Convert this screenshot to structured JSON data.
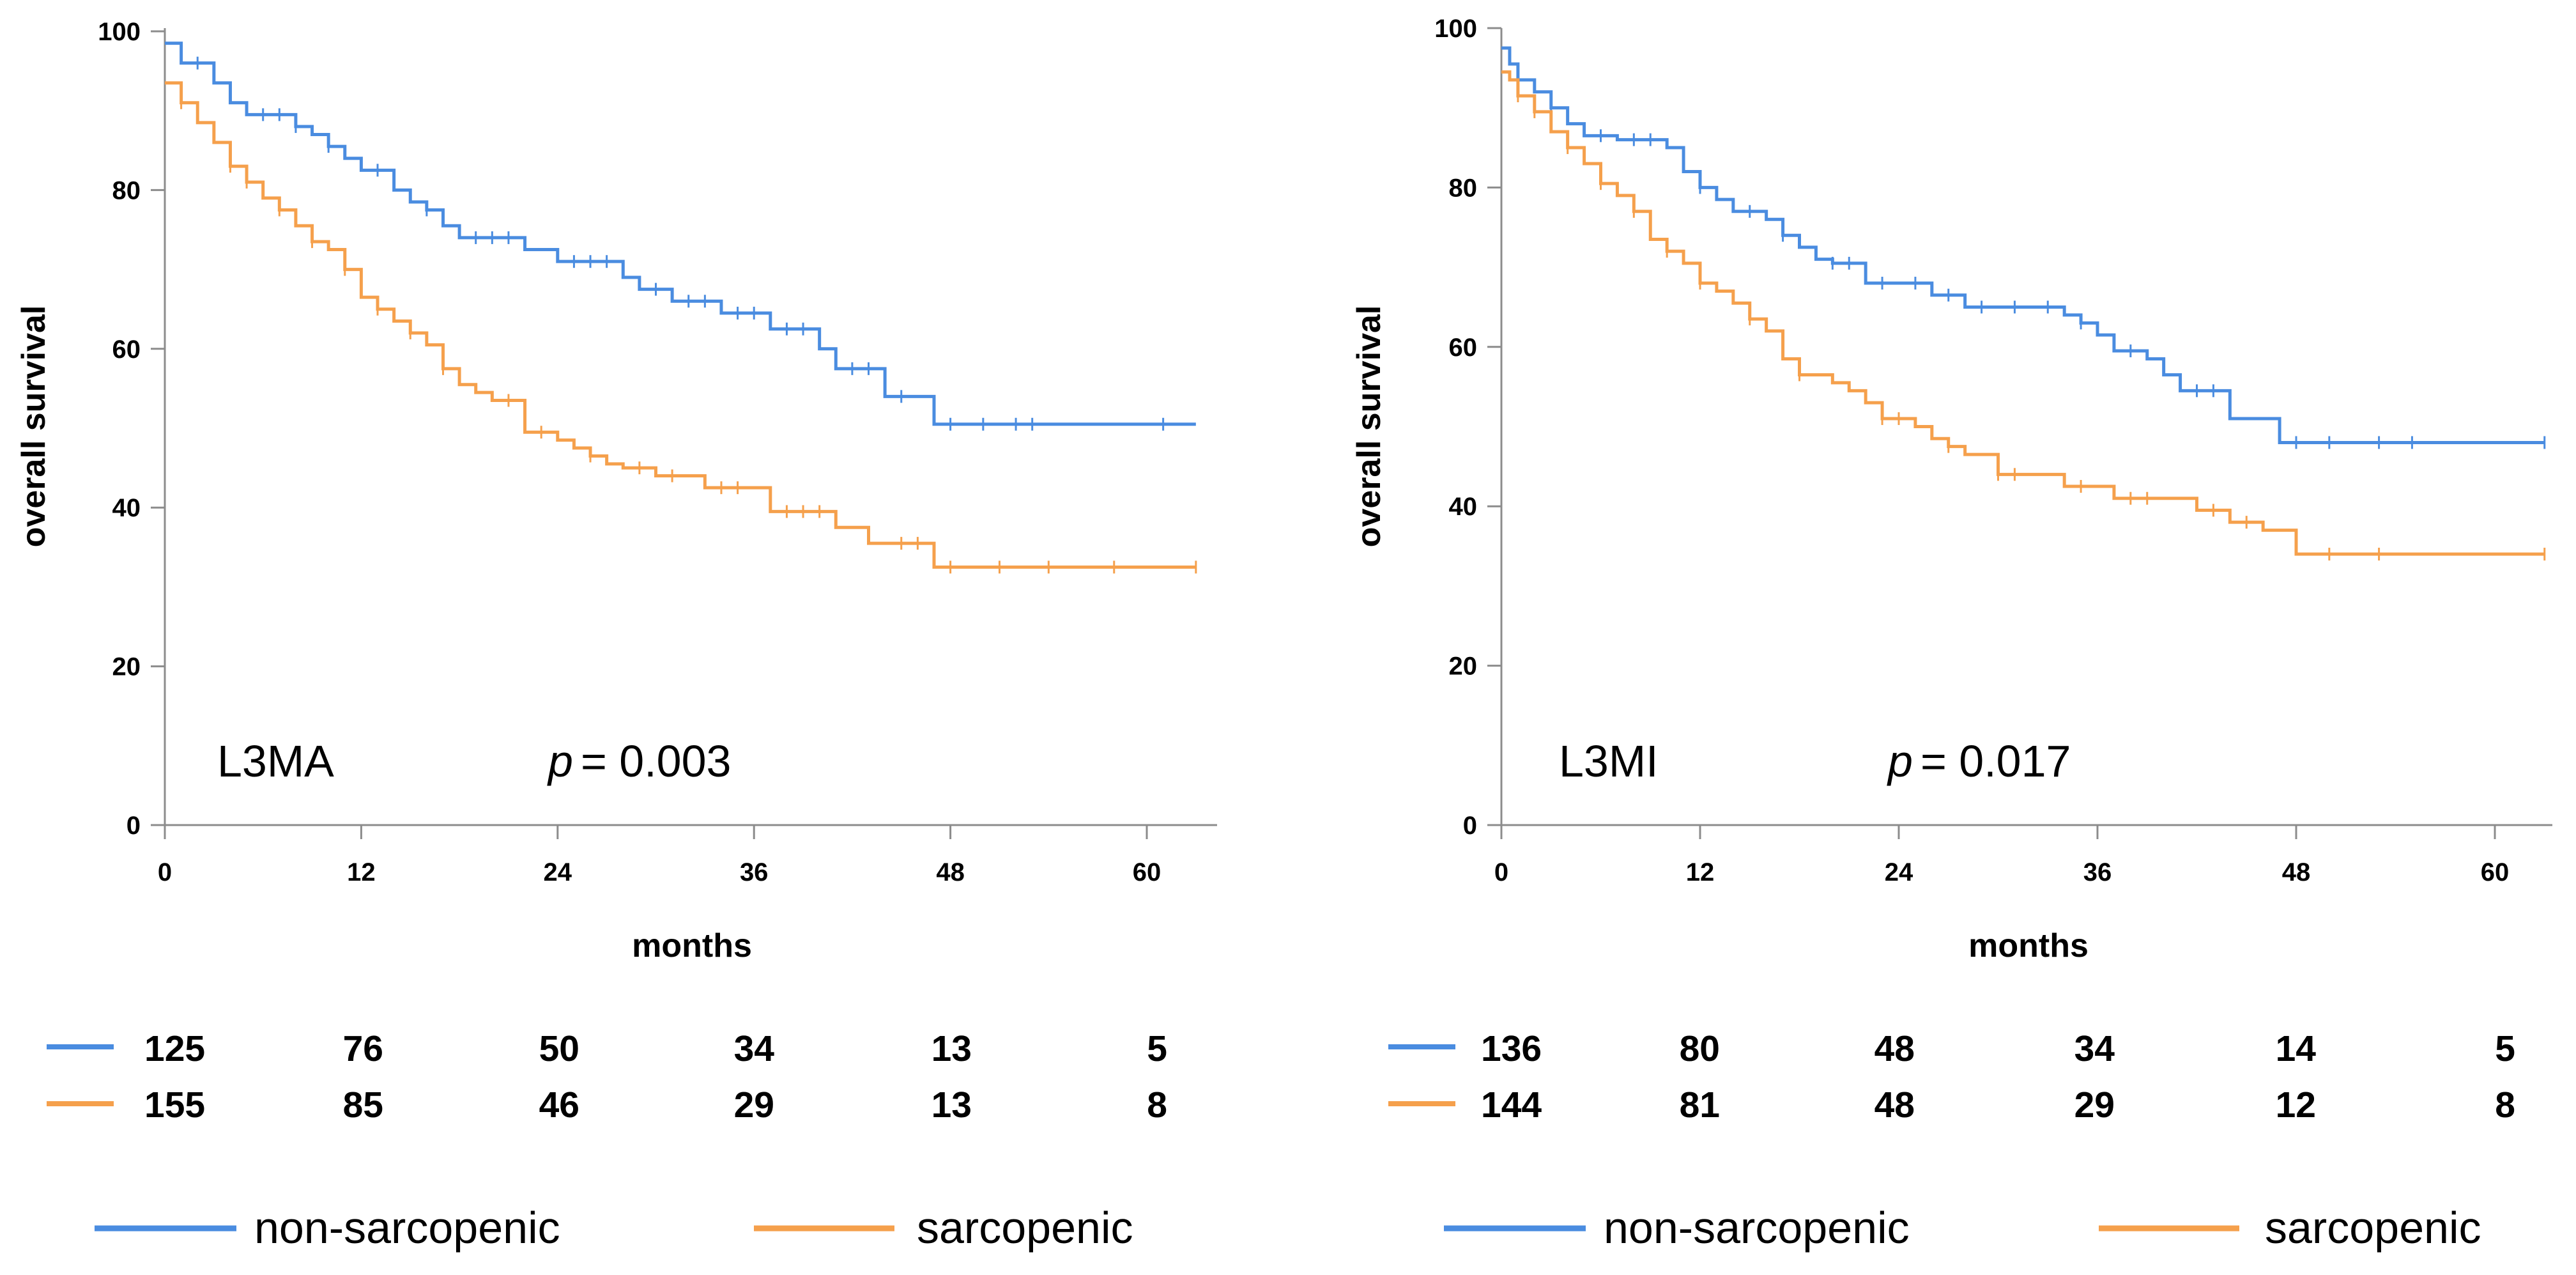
{
  "colors": {
    "non_sarcopenic": "#4a8ce0",
    "sarcopenic": "#f5a04c",
    "axis": "#8c8c8c"
  },
  "legend": {
    "non_sarcopenic": "non-sarcopenic",
    "sarcopenic": "sarcopenic"
  },
  "chart_data": [
    {
      "type": "line",
      "step": "post",
      "label": "L3MA",
      "p_prefix": "p",
      "p_rest": "= 0.003",
      "xlabel": "months",
      "ylabel": "overall survival",
      "xlim": [
        0,
        63
      ],
      "ylim": [
        0,
        100
      ],
      "xticks": [
        0,
        12,
        24,
        36,
        48,
        60
      ],
      "yticks": [
        0,
        20,
        40,
        60,
        80,
        100
      ],
      "series": [
        {
          "name": "non-sarcopenic",
          "x": [
            0,
            1,
            3,
            4,
            5,
            8,
            9,
            10,
            11,
            12,
            14,
            15,
            16,
            17,
            18,
            22,
            24,
            28,
            29,
            31,
            34,
            37,
            40,
            41,
            44,
            47,
            63
          ],
          "y": [
            98.5,
            96,
            93.5,
            91,
            89.5,
            88,
            87,
            85.5,
            84,
            82.5,
            80,
            78.5,
            77.5,
            75.5,
            74,
            72.5,
            71,
            69,
            67.5,
            66,
            64.5,
            62.5,
            60,
            57.5,
            54,
            50.5,
            50.5
          ],
          "censor_x": [
            2,
            6,
            7,
            8,
            10,
            13,
            16,
            19,
            20,
            21,
            25,
            26,
            27,
            30,
            32,
            33,
            35,
            36,
            38,
            39,
            42,
            43,
            45,
            48,
            50,
            52,
            53,
            61
          ]
        },
        {
          "name": "sarcopenic",
          "x": [
            0,
            1,
            2,
            3,
            4,
            5,
            6,
            7,
            8,
            9,
            10,
            11,
            12,
            13,
            14,
            15,
            16,
            17,
            18,
            19,
            20,
            22,
            24,
            25,
            26,
            27,
            28,
            30,
            33,
            37,
            41,
            43,
            47,
            63
          ],
          "y": [
            93.5,
            91,
            88.5,
            86,
            83,
            81,
            79,
            77.5,
            75.5,
            73.5,
            72.5,
            70,
            66.5,
            65,
            63.5,
            62,
            60.5,
            57.5,
            55.5,
            54.5,
            53.5,
            49.5,
            48.5,
            47.5,
            46.5,
            45.5,
            45,
            44,
            42.5,
            39.5,
            37.5,
            35.5,
            32.5,
            32.5
          ],
          "censor_x": [
            1,
            4,
            5,
            7,
            9,
            11,
            13,
            15,
            17,
            21,
            23,
            26,
            29,
            31,
            34,
            35,
            38,
            39,
            40,
            45,
            46,
            48,
            51,
            54,
            58,
            63
          ]
        }
      ],
      "risk_table": {
        "times": [
          0,
          12,
          24,
          36,
          48,
          60
        ],
        "non_sarcopenic": [
          "125",
          "76",
          "50",
          "34",
          "13",
          "5"
        ],
        "sarcopenic": [
          "155",
          "85",
          "46",
          "29",
          "13",
          "8"
        ]
      }
    },
    {
      "type": "line",
      "step": "post",
      "label": "L3MI",
      "p_prefix": "p",
      "p_rest": "= 0.017",
      "xlabel": "months",
      "ylabel": "overall survival",
      "xlim": [
        0,
        63
      ],
      "ylim": [
        0,
        100
      ],
      "xticks": [
        0,
        12,
        24,
        36,
        48,
        60
      ],
      "yticks": [
        0,
        20,
        40,
        60,
        80,
        100
      ],
      "series": [
        {
          "name": "non-sarcopenic",
          "x": [
            0,
            0.5,
            1,
            2,
            3,
            4,
            5,
            7,
            8,
            10,
            11,
            12,
            13,
            14,
            16,
            17,
            18,
            19,
            20,
            22,
            24,
            26,
            28,
            34,
            35,
            36,
            37,
            39,
            40,
            41,
            44,
            47,
            63
          ],
          "y": [
            97.5,
            95.5,
            93.5,
            92,
            90,
            88,
            86.5,
            86,
            86,
            85,
            82,
            80,
            78.5,
            77,
            76,
            74,
            72.5,
            71,
            70.5,
            68,
            68,
            66.5,
            65,
            64,
            63,
            61.5,
            59.5,
            58.5,
            56.5,
            54.5,
            51,
            48,
            48
          ],
          "censor_x": [
            1,
            3,
            6,
            8,
            9,
            12,
            15,
            17,
            20,
            21,
            23,
            25,
            27,
            29,
            31,
            33,
            35,
            38,
            42,
            43,
            48,
            50,
            53,
            55,
            63
          ]
        },
        {
          "name": "sarcopenic",
          "x": [
            0,
            0.5,
            1,
            2,
            3,
            4,
            5,
            6,
            7,
            8,
            9,
            10,
            11,
            12,
            13,
            14,
            15,
            16,
            17,
            18,
            20,
            21,
            22,
            23,
            25,
            26,
            27,
            28,
            30,
            34,
            37,
            42,
            44,
            46,
            48,
            63
          ],
          "y": [
            94.5,
            93.5,
            91.5,
            89.5,
            87,
            85,
            83,
            80.5,
            79,
            77,
            73.5,
            72,
            70.5,
            68,
            67,
            65.5,
            63.5,
            62,
            58.5,
            56.5,
            55.5,
            54.5,
            53,
            51,
            50,
            48.5,
            47.5,
            46.5,
            44,
            42.5,
            41,
            39.5,
            38,
            37,
            34,
            34
          ],
          "censor_x": [
            1,
            2,
            4,
            6,
            8,
            10,
            12,
            15,
            18,
            23,
            24,
            27,
            30,
            31,
            35,
            38,
            39,
            43,
            45,
            50,
            53,
            63
          ]
        }
      ],
      "risk_table": {
        "times": [
          0,
          12,
          24,
          36,
          48,
          60
        ],
        "non_sarcopenic": [
          "136",
          "80",
          "48",
          "34",
          "14",
          "5"
        ],
        "sarcopenic": [
          "144",
          "81",
          "48",
          "29",
          "12",
          "8"
        ]
      }
    }
  ]
}
